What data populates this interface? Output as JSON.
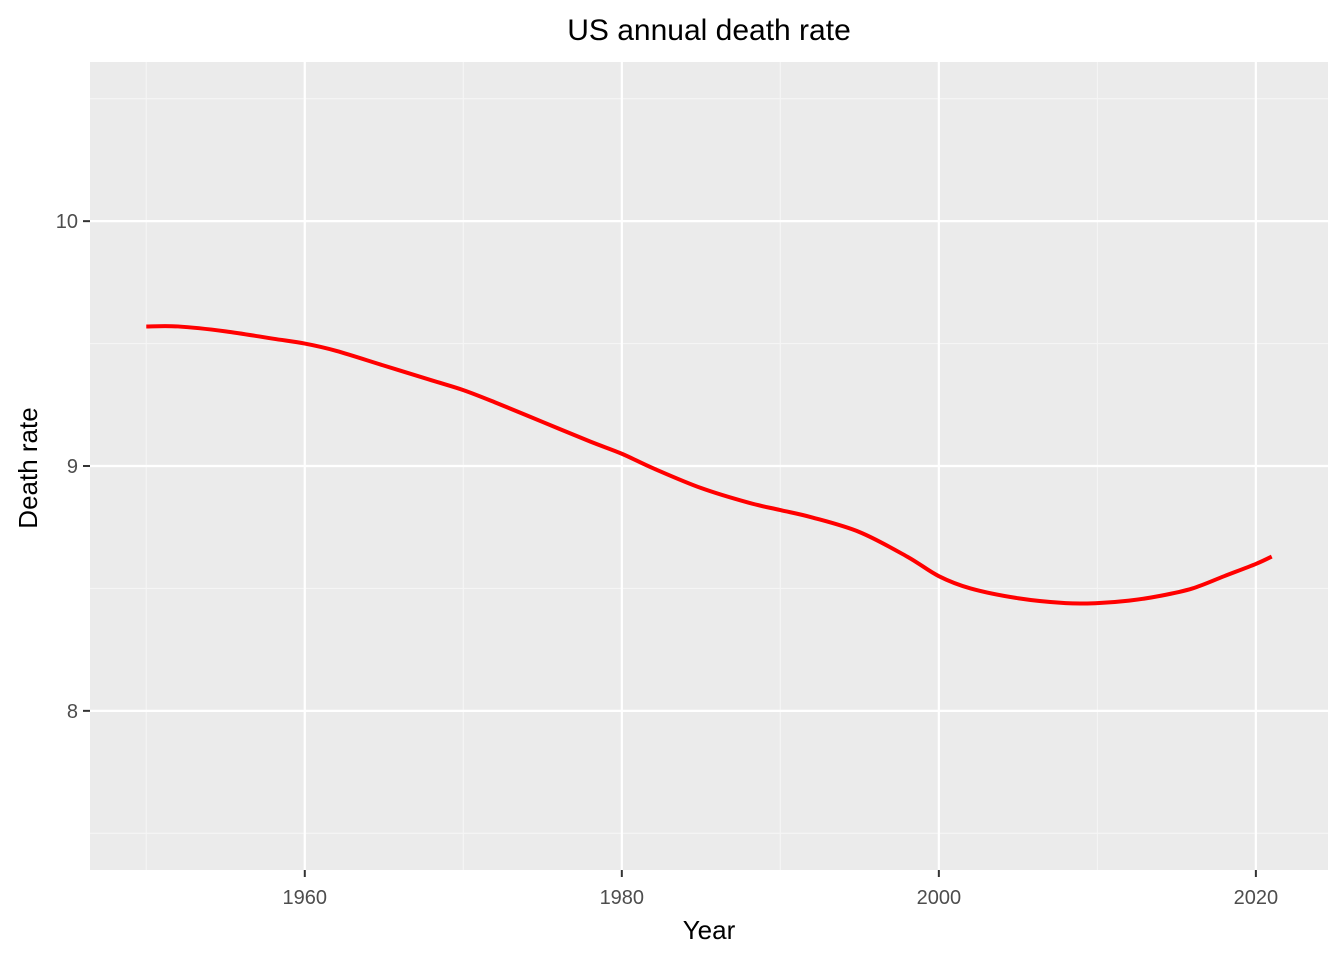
{
  "chart_data": {
    "type": "line",
    "title": "US annual death rate",
    "xlabel": "Year",
    "ylabel": "Death rate",
    "xlim": [
      1946.45,
      2024.55
    ],
    "ylim": [
      7.35,
      10.65
    ],
    "x_ticks": [
      1960,
      1980,
      2000,
      2020
    ],
    "x_minor_ticks": [
      1950,
      1970,
      1990,
      2010
    ],
    "y_ticks": [
      8,
      9,
      10
    ],
    "y_minor_ticks": [
      7.5,
      8.5,
      9.5,
      10.5
    ],
    "grid": true,
    "legend": "none",
    "series": [
      {
        "color": "#ff0000",
        "x": [
          1950,
          1952,
          1955,
          1958,
          1960,
          1962,
          1965,
          1968,
          1970,
          1972,
          1975,
          1978,
          1980,
          1982,
          1985,
          1988,
          1990,
          1992,
          1995,
          1998,
          2000,
          2002,
          2005,
          2008,
          2010,
          2012,
          2014,
          2016,
          2018,
          2020,
          2021
        ],
        "values": [
          9.57,
          9.57,
          9.55,
          9.52,
          9.5,
          9.47,
          9.41,
          9.35,
          9.31,
          9.26,
          9.18,
          9.1,
          9.05,
          8.99,
          8.91,
          8.85,
          8.82,
          8.79,
          8.73,
          8.63,
          8.55,
          8.5,
          8.46,
          8.44,
          8.44,
          8.45,
          8.47,
          8.5,
          8.55,
          8.6,
          8.63
        ]
      }
    ]
  },
  "colors": {
    "panel_background": "#ebebeb",
    "grid_major": "#ffffff",
    "grid_minor": "#f5f5f5",
    "line": "#ff0000"
  }
}
